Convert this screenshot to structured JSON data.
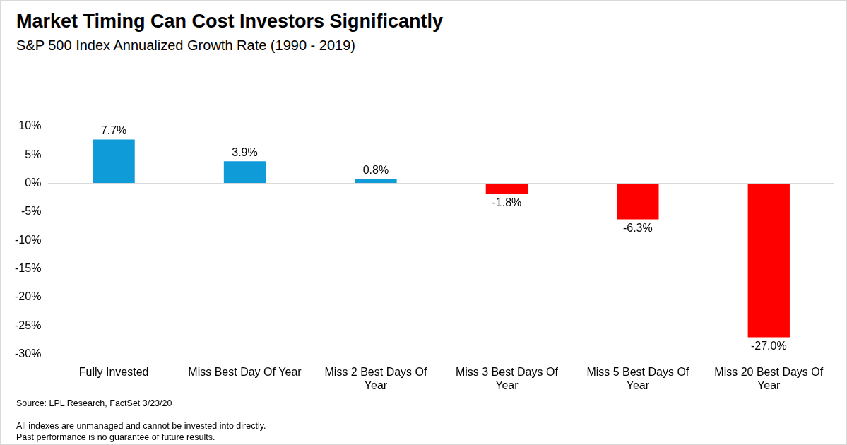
{
  "chart_data": {
    "type": "bar",
    "title": "Market Timing Can Cost Investors Significantly",
    "subtitle": "S&P 500 Index Annualized Growth Rate (1990 - 2019)",
    "categories": [
      "Fully Invested",
      "Miss Best Day Of Year",
      "Miss 2 Best Days Of Year",
      "Miss 3 Best Days Of Year",
      "Miss 5 Best Days Of Year",
      "Miss 20 Best Days Of Year"
    ],
    "values": [
      7.7,
      3.9,
      0.8,
      -1.8,
      -6.3,
      -27.0
    ],
    "value_labels": [
      "7.7%",
      "3.9%",
      "0.8%",
      "-1.8%",
      "-6.3%",
      "-27.0%"
    ],
    "colors": [
      "#0f9ad8",
      "#0f9ad8",
      "#0f9ad8",
      "#ff0000",
      "#ff0000",
      "#ff0000"
    ],
    "ylim": [
      -30,
      10
    ],
    "yticks": [
      {
        "value": -30,
        "label": "-30%"
      },
      {
        "value": -25,
        "label": "-25%"
      },
      {
        "value": -20,
        "label": "-20%"
      },
      {
        "value": -15,
        "label": "-15%"
      },
      {
        "value": -10,
        "label": "-10%"
      },
      {
        "value": -5,
        "label": "-5%"
      },
      {
        "value": 0,
        "label": "0%"
      },
      {
        "value": 5,
        "label": "5%"
      },
      {
        "value": 10,
        "label": "10%"
      }
    ],
    "grid": false,
    "data_labels": true,
    "annotations": [
      "Source: LPL Research, FactSet 3/23/20",
      "All indexes are unmanaged and cannot be invested into directly.",
      "Past performance is no guarantee of future results."
    ]
  }
}
